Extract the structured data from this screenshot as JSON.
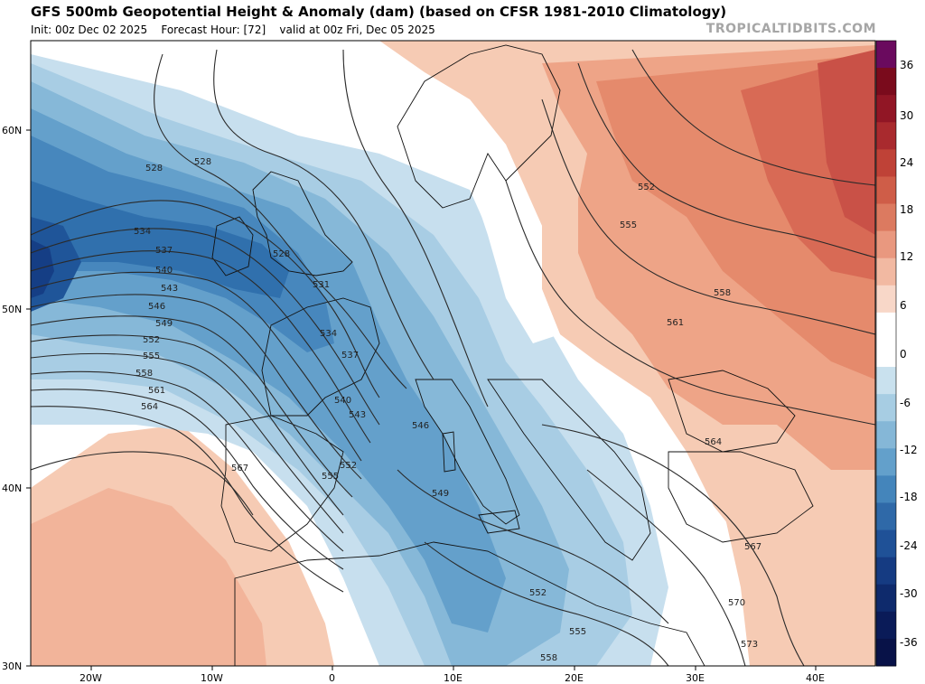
{
  "header": {
    "title": "GFS 500mb Geopotential Height & Anomaly (dam) (based on CFSR 1981-2010 Climatology)",
    "init": "Init: 00z Dec 02 2025",
    "forecast_hour": "Forecast Hour: [72]",
    "valid": "valid at 00z Fri, Dec 05 2025",
    "watermark": "TROPICALTIDBITS.COM"
  },
  "axes": {
    "lat_labels": [
      "60N",
      "50N",
      "40N",
      "30N"
    ],
    "lon_labels": [
      "20W",
      "10W",
      "0",
      "10E",
      "20E",
      "30E",
      "40E"
    ]
  },
  "colorbar": {
    "ticks": [
      "36",
      "30",
      "24",
      "18",
      "12",
      "6",
      "0",
      "-6",
      "-12",
      "-18",
      "-24",
      "-30",
      "-36"
    ],
    "colors": [
      "#6a0a5e",
      "#7a0b1c",
      "#911625",
      "#a92a2e",
      "#bf4237",
      "#cf5d48",
      "#dc7a60",
      "#e9987f",
      "#f2b9a2",
      "#f8d7c8",
      "#ffffff",
      "#ffffff",
      "#c9e1ee",
      "#a7cde3",
      "#85b7d7",
      "#63a0cb",
      "#4485bb",
      "#2f69a8",
      "#1f5197",
      "#153b82",
      "#0e2a6c",
      "#0a1b58",
      "#081248"
    ]
  },
  "contour_labels": {
    "528_a": "528",
    "528_b": "528",
    "528_c": "528",
    "531": "531",
    "534_a": "534",
    "534_b": "534",
    "537_a": "537",
    "537_b": "537",
    "540_a": "540",
    "540_b": "540",
    "543_a": "543",
    "543_b": "543",
    "546_a": "546",
    "546_b": "546",
    "549_a": "549",
    "549_b": "549",
    "552_a": "552",
    "552_b": "552",
    "552_c": "552",
    "552_d": "552",
    "555_a": "555",
    "555_b": "555",
    "555_c": "555",
    "555_d": "555",
    "558_a": "558",
    "558_b": "558",
    "558_c": "558",
    "561_a": "561",
    "561_b": "561",
    "564_a": "564",
    "564_b": "564",
    "567_a": "567",
    "567_b": "567",
    "570": "570",
    "573": "573"
  },
  "colors": {
    "ocean_high_bg": "#ffffff",
    "positive_anomaly": "#f4c0a8",
    "negative_anomaly": "#6ea6d0",
    "contour": "#2a2a2a"
  }
}
